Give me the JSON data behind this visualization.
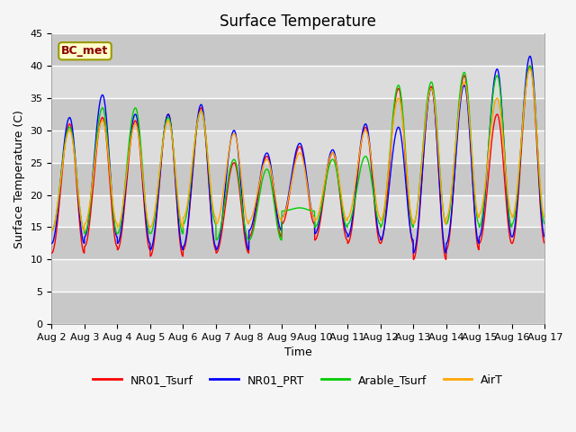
{
  "title": "Surface Temperature",
  "ylabel": "Surface Temperature (C)",
  "xlabel": "Time",
  "ylim": [
    0,
    45
  ],
  "annotation": "BC_met",
  "plot_bg_color": "#dcdcdc",
  "fig_bg_color": "#f5f5f5",
  "line_colors": {
    "NR01_Tsurf": "#ff0000",
    "NR01_PRT": "#0000ff",
    "Arable_Tsurf": "#00cc00",
    "AirT": "#ffa500"
  },
  "xtick_labels": [
    "Aug 2",
    "Aug 3",
    "Aug 4",
    "Aug 5",
    "Aug 6",
    "Aug 7",
    "Aug 8",
    "Aug 9",
    "Aug 10",
    "Aug 11",
    "Aug 12",
    "Aug 13",
    "Aug 14",
    "Aug 15",
    "Aug 16",
    "Aug 17"
  ],
  "ytick_values": [
    0,
    5,
    10,
    15,
    20,
    25,
    30,
    35,
    40,
    45
  ],
  "n_days": 15,
  "points_per_day": 144,
  "day_peaks_NR01": [
    31.0,
    32.0,
    31.5,
    32.5,
    33.5,
    25.0,
    26.0,
    27.5,
    26.5,
    30.5,
    36.5,
    36.8,
    38.5,
    32.5,
    40.0
  ],
  "day_peaks_PRT": [
    32.0,
    35.5,
    32.5,
    32.5,
    34.0,
    30.0,
    26.5,
    28.0,
    27.0,
    31.0,
    30.5,
    36.5,
    37.0,
    39.5,
    41.5
  ],
  "day_peaks_Ar": [
    30.5,
    33.5,
    33.5,
    32.0,
    33.0,
    25.5,
    24.0,
    18.0,
    25.5,
    26.0,
    37.0,
    37.5,
    39.0,
    38.5,
    40.0
  ],
  "day_peaks_Air": [
    30.0,
    31.5,
    31.0,
    31.5,
    33.0,
    29.5,
    25.5,
    26.5,
    26.5,
    30.0,
    35.0,
    36.5,
    37.5,
    35.0,
    39.5
  ],
  "night_mins_NR01": [
    11.0,
    12.0,
    11.5,
    10.5,
    11.5,
    11.0,
    13.5,
    15.5,
    13.0,
    12.5,
    12.5,
    10.0,
    11.5,
    12.5,
    12.5
  ],
  "night_mins_PRT": [
    12.5,
    13.5,
    12.5,
    11.5,
    12.0,
    11.5,
    14.5,
    16.5,
    14.0,
    13.5,
    13.0,
    11.0,
    12.5,
    13.5,
    13.5
  ],
  "night_mins_Ar": [
    14.5,
    14.0,
    14.0,
    14.0,
    15.5,
    13.0,
    13.0,
    17.5,
    15.0,
    15.5,
    15.0,
    15.5,
    15.5,
    15.0,
    15.5
  ],
  "night_mins_Air": [
    14.5,
    15.5,
    15.0,
    15.0,
    16.5,
    15.5,
    16.0,
    16.5,
    16.0,
    16.5,
    16.0,
    15.5,
    16.5,
    17.0,
    16.5
  ],
  "title_fontsize": 12,
  "axis_label_fontsize": 9,
  "tick_fontsize": 8,
  "legend_fontsize": 9,
  "linewidth": 1.0
}
